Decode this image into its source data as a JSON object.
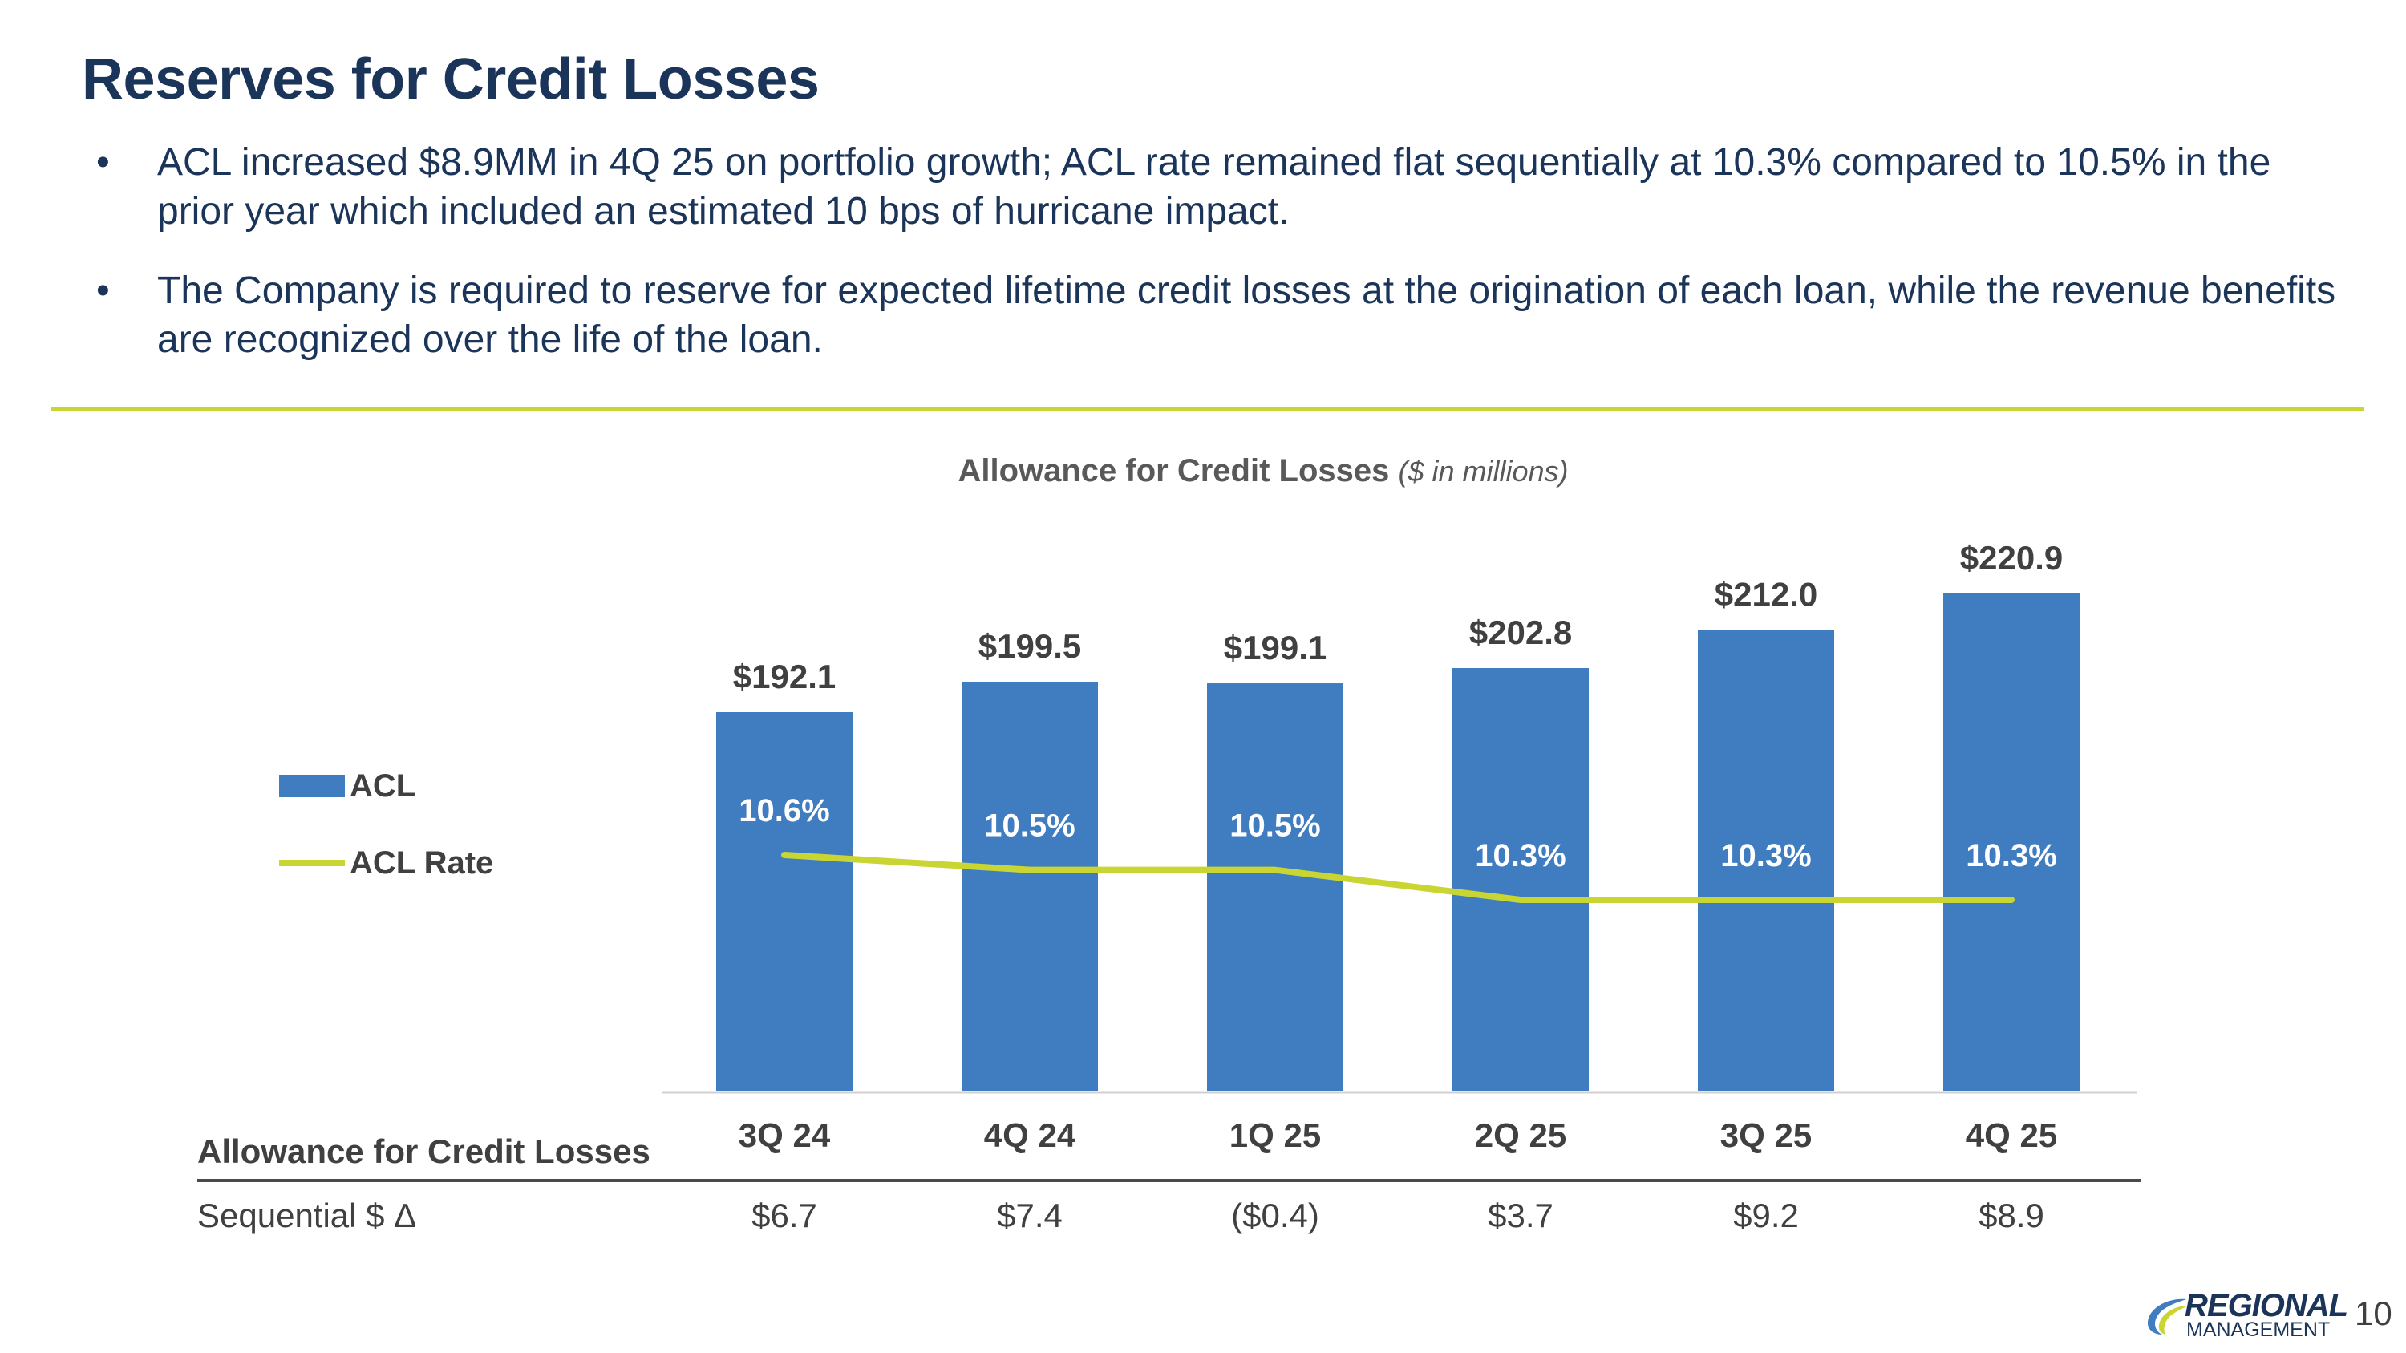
{
  "slide": {
    "title": "Reserves for Credit Losses",
    "bullets": [
      "ACL increased $8.9MM in 4Q 25 on portfolio growth; ACL rate remained flat sequentially at 10.3% compared to 10.5% in the prior year which included an estimated 10 bps of hurricane impact.",
      "The Company is required to reserve for expected lifetime credit losses at the origination of each loan, while the revenue benefits are recognized over the life of the loan."
    ],
    "page_number": "10"
  },
  "logo": {
    "line1": "REGIONAL",
    "line2": "MANAGEMENT",
    "mark": "®"
  },
  "colors": {
    "title": "#1b3459",
    "bar": "#3f7cc0",
    "rate_line": "#c9d532",
    "divider": "#c9d532"
  },
  "chart_data": {
    "type": "bar",
    "title": "Allowance for Credit Losses",
    "subtitle": "($ in millions)",
    "categories": [
      "3Q 24",
      "4Q 24",
      "1Q 25",
      "2Q 25",
      "3Q 25",
      "4Q 25"
    ],
    "series": [
      {
        "name": "ACL",
        "type": "bar",
        "values": [
          192.1,
          199.5,
          199.1,
          202.8,
          212.0,
          220.9
        ],
        "labels": [
          "$192.1",
          "$199.5",
          "$199.1",
          "$202.8",
          "$212.0",
          "$220.9"
        ]
      },
      {
        "name": "ACL Rate",
        "type": "line",
        "values": [
          10.6,
          10.5,
          10.5,
          10.3,
          10.3,
          10.3
        ],
        "labels": [
          "10.6%",
          "10.5%",
          "10.5%",
          "10.3%",
          "10.3%",
          "10.3%"
        ]
      }
    ],
    "legend_position": "left",
    "grid": false
  },
  "table": {
    "header_label": "Allowance for Credit Losses",
    "row_label": "Sequential $ Δ",
    "sequential_values": [
      "$6.7",
      "$7.4",
      "($0.4)",
      "$3.7",
      "$9.2",
      "$8.9"
    ]
  }
}
